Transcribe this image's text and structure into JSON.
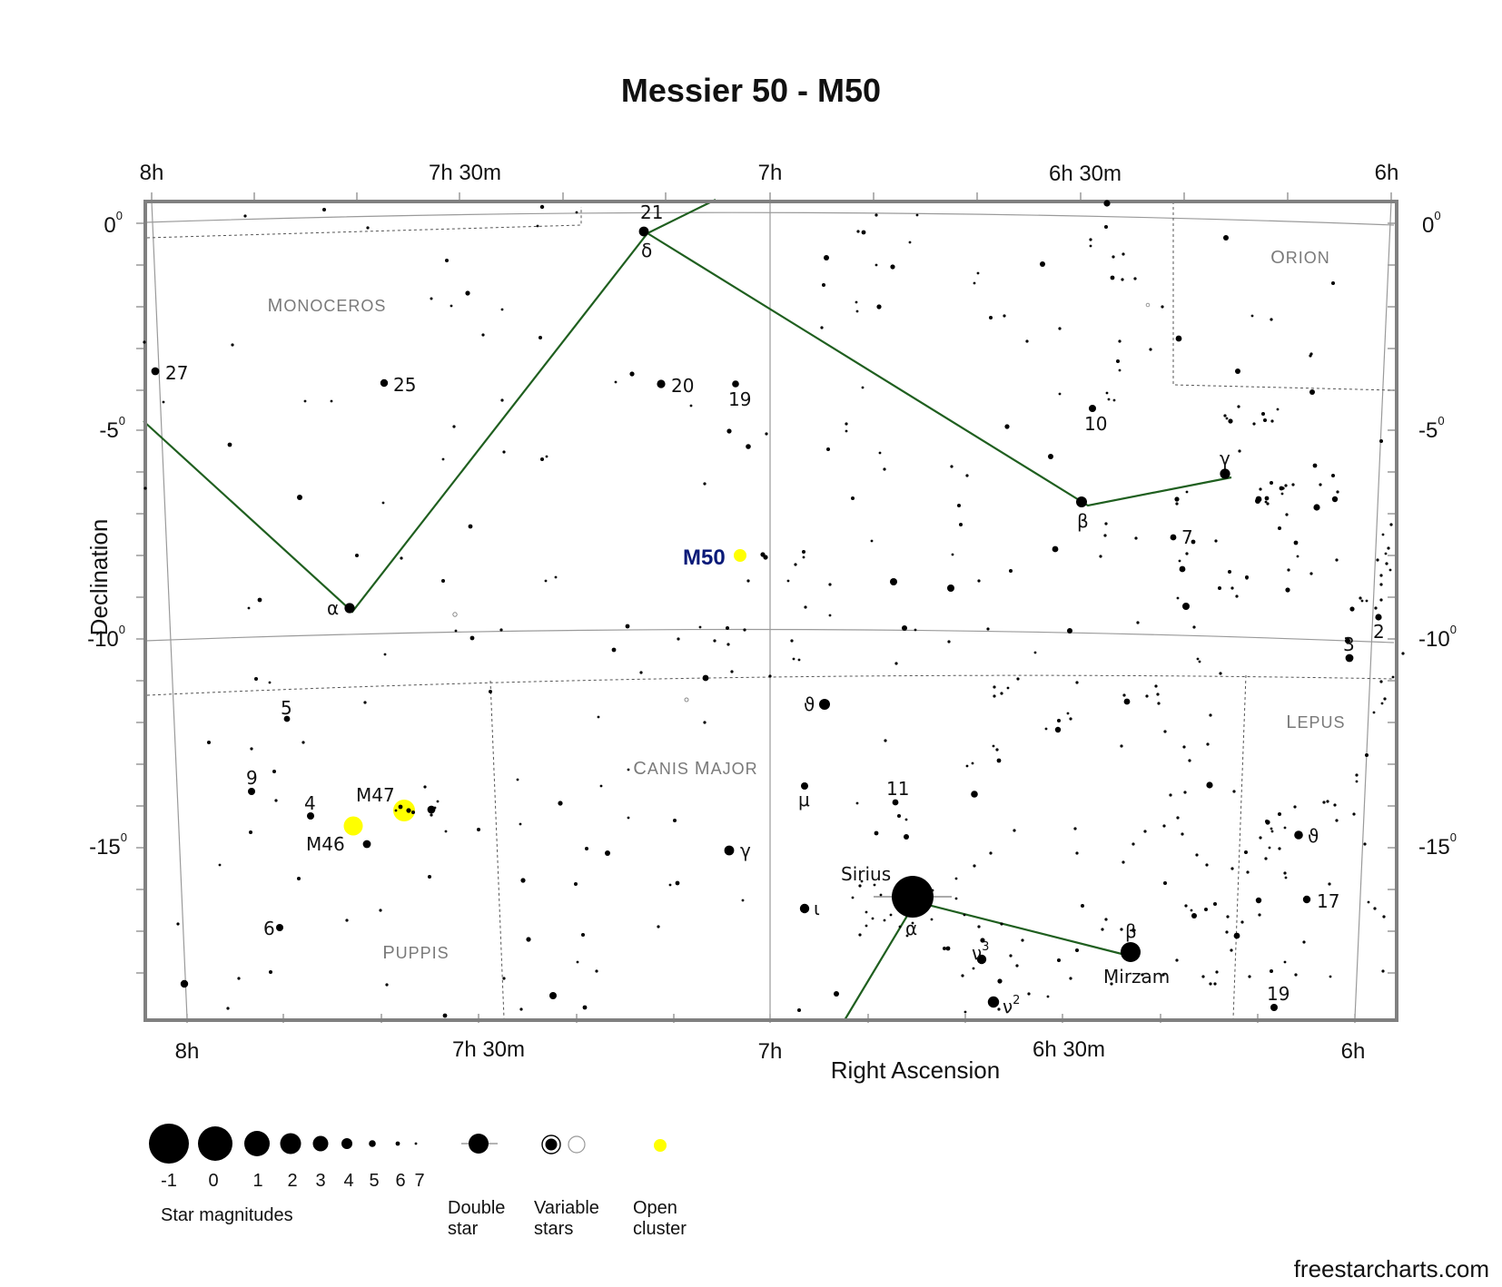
{
  "title": "Messier 50 - M50",
  "credit": "freestarcharts.com",
  "axes": {
    "x_title": "Right Ascension",
    "y_title": "Declination",
    "top_ra_labels": [
      "8h",
      "7h 30m",
      "7h",
      "6h 30m",
      "6h"
    ],
    "bottom_ra_labels": [
      "8h",
      "7h 30m",
      "7h",
      "6h 30m",
      "6h"
    ],
    "dec_labels": [
      {
        "value": "0",
        "sup": "0"
      },
      {
        "value": "-5",
        "sup": "0"
      },
      {
        "value": "-10",
        "sup": "0"
      },
      {
        "value": "-15",
        "sup": "0"
      }
    ]
  },
  "constellations": {
    "monoceros": "Monoceros",
    "orion": "Orion",
    "lepus": "Lepus",
    "canis_major": "Canis Major",
    "puppis": "Puppis"
  },
  "target": {
    "label": "M50",
    "color": "#ffff00"
  },
  "clusters": {
    "m47": "M47",
    "m46": "M46"
  },
  "star_labels": {
    "n27": "27",
    "n25": "25",
    "n20": "20",
    "n19a": "19",
    "n21": "21",
    "delta": "δ",
    "n10": "10",
    "gamma_ori": "γ",
    "beta_mon": "β",
    "n7": "7",
    "alpha_mon": "α",
    "n2": "2",
    "n3": "3",
    "n5": "5",
    "theta_cma": "ϑ",
    "n9": "9",
    "n4": "4",
    "mu": "μ",
    "n11": "11",
    "gamma_cma": "γ",
    "theta_lep": "ϑ",
    "sirius": "Sirius",
    "alpha_cma": "α",
    "iota": "ι",
    "n6": "6",
    "n17": "17",
    "beta_cma": "β",
    "mirzam": "Mirzam",
    "nu3": "ν",
    "nu3_sup": "3",
    "nu2": "ν",
    "nu2_sup": "2",
    "n19b": "19"
  },
  "legend": {
    "magnitudes": [
      "-1",
      "0",
      "1",
      "2",
      "3",
      "4",
      "5",
      "6",
      "7"
    ],
    "magnitudes_caption": "Star magnitudes",
    "double_star": [
      "Double",
      "star"
    ],
    "variable_stars": [
      "Variable",
      "stars"
    ],
    "open_cluster": [
      "Open",
      "cluster"
    ]
  },
  "colors": {
    "asterism_line": "#1f5f1f",
    "frame": "#808080",
    "open_cluster": "#ffff00",
    "target_label": "#0a1a78",
    "constellation_label": "#7a7a7a"
  }
}
